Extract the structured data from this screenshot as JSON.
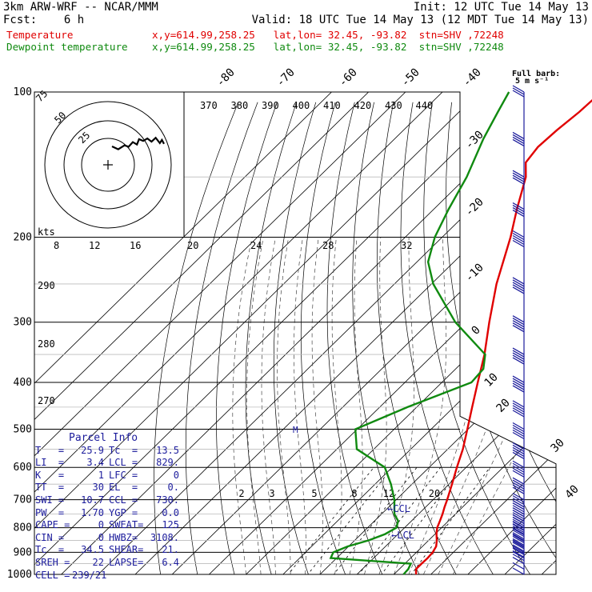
{
  "header": {
    "model": "3km ARW-WRF -- NCAR/MMM",
    "init": "Init: 12 UTC Tue 14 May 13",
    "fcst": "Fcst:    6 h",
    "valid": "Valid: 18 UTC Tue 14 May 13 (12 MDT Tue 14 May 13)",
    "temp_line": "Temperature             x,y=614.99,258.25   lat,lon= 32.45, -93.82  stn=SHV ,72248",
    "dew_line": "Dewpoint temperature    x,y=614.99,258.25   lat,lon= 32.45, -93.82  stn=SHV ,72248"
  },
  "colors": {
    "temperature": "#e00000",
    "dewpoint": "#108a10",
    "barbs": "#1c1c9c",
    "text": "#000000"
  },
  "parcel_info": {
    "title": "Parcel Info",
    "rows": [
      [
        "T   =",
        "25.9",
        "Tc  =",
        "13.5"
      ],
      [
        "LI  =",
        "3.4",
        "LCL =",
        "829."
      ],
      [
        "K   =",
        "1",
        "LFC =",
        "0"
      ],
      [
        "TT  =",
        "30",
        "EL  =",
        "0."
      ],
      [
        "SWI =",
        "10.7",
        "CCL =",
        "730."
      ],
      [
        "PW  =",
        "1.70",
        "YGP =",
        "0.0"
      ],
      [
        "CAPE =",
        "0",
        "SWEAT=",
        "125"
      ],
      [
        "CIN =",
        "0",
        "HWBZ=",
        "3108."
      ],
      [
        "Tc  =",
        "34.5",
        "SHEAR=",
        "21."
      ],
      [
        "SREH =",
        "22",
        "LAPSE=",
        "6.4"
      ],
      [
        "CELL =",
        "239/21",
        "",
        ""
      ]
    ]
  },
  "barb_key": {
    "label": "Full barb:",
    "unit": "5 m s⁻¹"
  },
  "chart_data": {
    "type": "line",
    "subtype": "skew-T log-p diagram",
    "y_axis": {
      "label": "",
      "scale": "log",
      "range": [
        1000,
        100
      ],
      "ticks": [
        100,
        200,
        300,
        400,
        500,
        600,
        700,
        800,
        900,
        1000
      ]
    },
    "isotherm_labels": [
      "-80",
      "-70",
      "-60",
      "-50",
      "-40",
      "-30",
      "-20",
      "-10",
      "0",
      "10",
      "20",
      "30",
      "40"
    ],
    "theta_labels": [
      "370",
      "380",
      "390",
      "400",
      "410",
      "420",
      "430",
      "440"
    ],
    "dry_adiabat_labels": [
      "290",
      "280",
      "270"
    ],
    "mixing_ratio_labels": [
      "2",
      "3",
      "5",
      "8",
      "12",
      "20"
    ],
    "hodograph": {
      "speed_unit": "kts",
      "ring_labels": [
        "75",
        "50",
        "25"
      ],
      "speed_ticks": [
        "8",
        "12",
        "16",
        "20",
        "24",
        "28",
        "32"
      ]
    },
    "annotations": [
      "CCL",
      "LCL",
      "M"
    ],
    "series": [
      {
        "name": "Temperature",
        "points": [
          [
            1000,
            26
          ],
          [
            975,
            24.5
          ],
          [
            950,
            24.5
          ],
          [
            925,
            24.6
          ],
          [
            900,
            24.4
          ],
          [
            875,
            23.7
          ],
          [
            850,
            22.2
          ],
          [
            825,
            20.4
          ],
          [
            800,
            18.8
          ],
          [
            775,
            17.7
          ],
          [
            750,
            16.5
          ],
          [
            725,
            15.1
          ],
          [
            700,
            13.8
          ],
          [
            650,
            10.8
          ],
          [
            600,
            7.5
          ],
          [
            550,
            4.1
          ],
          [
            500,
            -0.2
          ],
          [
            450,
            -5
          ],
          [
            400,
            -10.3
          ],
          [
            350,
            -16.2
          ],
          [
            300,
            -23.8
          ],
          [
            250,
            -32.4
          ],
          [
            200,
            -41.5
          ],
          [
            175,
            -47.5
          ],
          [
            150,
            -54
          ],
          [
            140,
            -58
          ],
          [
            130,
            -59
          ],
          [
            120,
            -58.5
          ],
          [
            110,
            -57.5
          ],
          [
            100,
            -57
          ]
        ]
      },
      {
        "name": "Dewpoint temperature",
        "points": [
          [
            1000,
            22.6
          ],
          [
            975,
            22.4
          ],
          [
            950,
            21.6
          ],
          [
            925,
            -1.6
          ],
          [
            900,
            -2.5
          ],
          [
            875,
            -0.2
          ],
          [
            850,
            3.8
          ],
          [
            825,
            6.5
          ],
          [
            800,
            7.8
          ],
          [
            775,
            6.4
          ],
          [
            750,
            3.5
          ],
          [
            700,
            -0.5
          ],
          [
            650,
            -5.7
          ],
          [
            600,
            -12
          ],
          [
            550,
            -24.6
          ],
          [
            500,
            -30.5
          ],
          [
            450,
            -22.5
          ],
          [
            400,
            -12
          ],
          [
            375,
            -12.5
          ],
          [
            350,
            -16
          ],
          [
            300,
            -33
          ],
          [
            250,
            -49.5
          ],
          [
            225,
            -57
          ],
          [
            200,
            -62
          ],
          [
            175,
            -66
          ],
          [
            150,
            -70
          ],
          [
            125,
            -76
          ],
          [
            110,
            -79.5
          ],
          [
            100,
            -82
          ]
        ]
      }
    ],
    "hodograph_trace": [
      [
        0,
        0
      ],
      [
        3,
        0.5
      ],
      [
        6,
        1.5
      ],
      [
        8,
        4
      ],
      [
        10,
        6
      ],
      [
        12,
        7
      ],
      [
        13,
        10
      ],
      [
        15,
        12
      ],
      [
        17,
        11
      ],
      [
        19,
        11
      ],
      [
        21,
        12
      ],
      [
        23,
        9
      ],
      [
        24,
        9
      ],
      [
        25,
        8
      ]
    ],
    "wind_barbs": [
      [
        1000,
        5,
        2
      ],
      [
        975,
        8,
        3
      ],
      [
        950,
        10,
        5
      ],
      [
        925,
        10,
        8
      ],
      [
        900,
        10,
        15
      ],
      [
        875,
        8,
        20
      ],
      [
        850,
        5,
        20
      ],
      [
        825,
        5,
        20
      ],
      [
        800,
        5,
        22
      ],
      [
        775,
        5,
        25
      ],
      [
        750,
        5,
        25
      ],
      [
        725,
        5,
        25
      ],
      [
        700,
        5,
        25
      ],
      [
        650,
        10,
        25
      ],
      [
        600,
        10,
        25
      ],
      [
        550,
        10,
        25
      ],
      [
        500,
        10,
        25
      ],
      [
        450,
        15,
        25
      ],
      [
        400,
        15,
        25
      ],
      [
        350,
        20,
        25
      ],
      [
        300,
        25,
        25
      ],
      [
        250,
        30,
        25
      ],
      [
        200,
        35,
        25
      ],
      [
        175,
        35,
        20
      ],
      [
        150,
        35,
        20
      ],
      [
        125,
        40,
        20
      ],
      [
        100,
        40,
        15
      ]
    ]
  }
}
